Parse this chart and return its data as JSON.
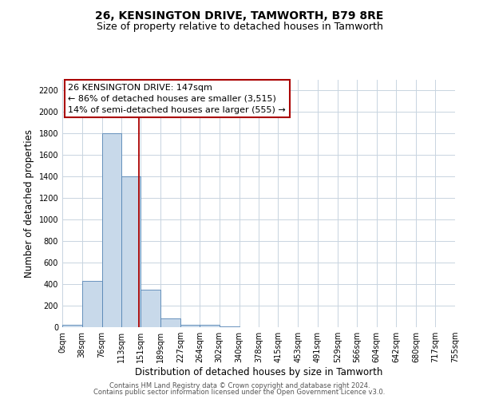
{
  "title": "26, KENSINGTON DRIVE, TAMWORTH, B79 8RE",
  "subtitle": "Size of property relative to detached houses in Tamworth",
  "xlabel": "Distribution of detached houses by size in Tamworth",
  "ylabel": "Number of detached properties",
  "bin_edges": [
    0,
    38,
    76,
    113,
    151,
    189,
    227,
    264,
    302,
    340,
    378,
    415,
    453,
    491,
    529,
    566,
    604,
    642,
    680,
    717,
    755
  ],
  "bin_counts": [
    20,
    430,
    1800,
    1400,
    350,
    80,
    25,
    20,
    5,
    0,
    0,
    0,
    0,
    0,
    0,
    0,
    0,
    0,
    0,
    0
  ],
  "bar_color": "#c8d9ea",
  "bar_edge_color": "#5585b5",
  "property_size": 147,
  "red_line_color": "#aa0000",
  "annotation_box_edge_color": "#aa0000",
  "annotation_title": "26 KENSINGTON DRIVE: 147sqm",
  "annotation_line1": "← 86% of detached houses are smaller (3,515)",
  "annotation_line2": "14% of semi-detached houses are larger (555) →",
  "ylim": [
    0,
    2300
  ],
  "yticks": [
    0,
    200,
    400,
    600,
    800,
    1000,
    1200,
    1400,
    1600,
    1800,
    2000,
    2200
  ],
  "tick_labels": [
    "0sqm",
    "38sqm",
    "76sqm",
    "113sqm",
    "151sqm",
    "189sqm",
    "227sqm",
    "264sqm",
    "302sqm",
    "340sqm",
    "378sqm",
    "415sqm",
    "453sqm",
    "491sqm",
    "529sqm",
    "566sqm",
    "604sqm",
    "642sqm",
    "680sqm",
    "717sqm",
    "755sqm"
  ],
  "footer_line1": "Contains HM Land Registry data © Crown copyright and database right 2024.",
  "footer_line2": "Contains public sector information licensed under the Open Government Licence v3.0.",
  "bg_color": "#ffffff",
  "grid_color": "#c8d4e0",
  "title_fontsize": 10,
  "subtitle_fontsize": 9,
  "axis_label_fontsize": 8.5,
  "tick_fontsize": 7,
  "annotation_fontsize": 8,
  "footer_fontsize": 6
}
